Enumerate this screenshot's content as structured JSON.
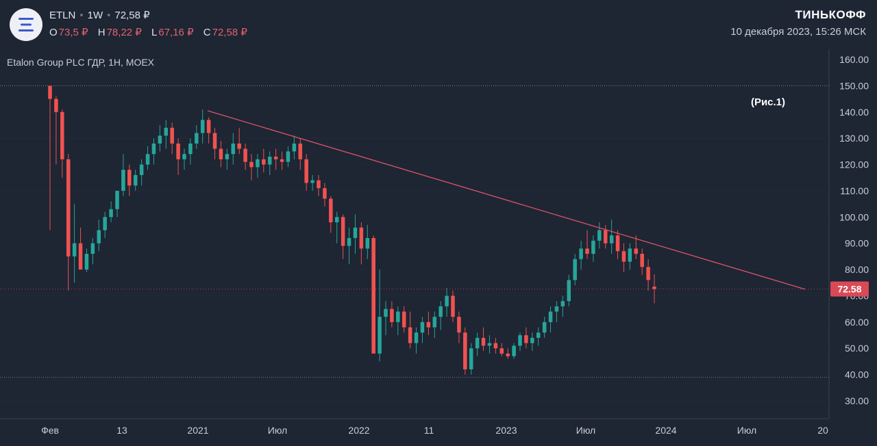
{
  "header": {
    "ticker": "ETLN",
    "interval": "1W",
    "last_price": "72,58 ₽",
    "ohlc": [
      {
        "key": "O",
        "value": "73,5 ₽"
      },
      {
        "key": "H",
        "value": "78,22 ₽"
      },
      {
        "key": "L",
        "value": "67,16 ₽"
      },
      {
        "key": "C",
        "value": "72,58 ₽"
      }
    ],
    "brand": "ТИНЬКОФФ",
    "datetime": "10 декабря 2023, 15:26 МСК",
    "logo_icon": "tinkoff-investments-logo-icon"
  },
  "chart_data": {
    "type": "candlestick",
    "title": "Etalon Group PLC ГДР, 1Н, MOEX",
    "annotation": "(Рис.1)",
    "y_ticks": [
      "160.00",
      "150.00",
      "140.00",
      "130.00",
      "120.00",
      "110.00",
      "100.00",
      "90.00",
      "80.00",
      "70.00",
      "60.00",
      "50.00",
      "40.00",
      "30.00"
    ],
    "ylim": [
      30,
      160
    ],
    "x_ticks": [
      "Фев",
      "13",
      "2021",
      "Июл",
      "2022",
      "11",
      "2023",
      "Июл",
      "2024",
      "Июл",
      "20"
    ],
    "last_price_label": "72.58",
    "horizontal_levels": [
      150,
      39
    ],
    "trendline": {
      "from": [
        140.5,
        "2021-01"
      ],
      "to": [
        72.5,
        "2024-11"
      ]
    },
    "colors": {
      "background": "#1e2533",
      "up": "#26a69a",
      "down": "#ef5350",
      "trendline": "#e0546a",
      "price_label": "#d94a56",
      "grid": "#283040"
    },
    "ohlc_weekly": [
      [
        150,
        150,
        95,
        145
      ],
      [
        145,
        146,
        120,
        140
      ],
      [
        140,
        141,
        115,
        122
      ],
      [
        122,
        124,
        72,
        85
      ],
      [
        85,
        105,
        75,
        90
      ],
      [
        90,
        96,
        80,
        80
      ],
      [
        80,
        88,
        79,
        86
      ],
      [
        86,
        92,
        82,
        90
      ],
      [
        90,
        99,
        87,
        95
      ],
      [
        95,
        102,
        92,
        100
      ],
      [
        100,
        106,
        98,
        103
      ],
      [
        103,
        110,
        100,
        110
      ],
      [
        110,
        124,
        108,
        118
      ],
      [
        118,
        120,
        108,
        112
      ],
      [
        112,
        118,
        110,
        116
      ],
      [
        116,
        122,
        112,
        120
      ],
      [
        120,
        127,
        118,
        124
      ],
      [
        124,
        130,
        120,
        128
      ],
      [
        128,
        135,
        125,
        131
      ],
      [
        131,
        137,
        126,
        134
      ],
      [
        134,
        136,
        124,
        128
      ],
      [
        128,
        130,
        116,
        122
      ],
      [
        122,
        126,
        118,
        124
      ],
      [
        124,
        130,
        120,
        128
      ],
      [
        128,
        135,
        126,
        132
      ],
      [
        132,
        141,
        128,
        137
      ],
      [
        137,
        138,
        128,
        132
      ],
      [
        132,
        134,
        122,
        126
      ],
      [
        126,
        129,
        119,
        122
      ],
      [
        122,
        126,
        118,
        124
      ],
      [
        124,
        132,
        120,
        128
      ],
      [
        128,
        134,
        124,
        126
      ],
      [
        126,
        128,
        118,
        121
      ],
      [
        121,
        124,
        114,
        119
      ],
      [
        119,
        124,
        115,
        122
      ],
      [
        122,
        126,
        117,
        120
      ],
      [
        120,
        125,
        116,
        123
      ],
      [
        123,
        126,
        118,
        122
      ],
      [
        122,
        125,
        118,
        121
      ],
      [
        121,
        127,
        119,
        125
      ],
      [
        125,
        131,
        122,
        128
      ],
      [
        128,
        130,
        118,
        122
      ],
      [
        122,
        124,
        110,
        113
      ],
      [
        113,
        116,
        110,
        114
      ],
      [
        114,
        116,
        108,
        111
      ],
      [
        111,
        113,
        104,
        107
      ],
      [
        107,
        108,
        94,
        98
      ],
      [
        98,
        102,
        90,
        100
      ],
      [
        100,
        101,
        84,
        89
      ],
      [
        89,
        96,
        82,
        92
      ],
      [
        92,
        101,
        86,
        96
      ],
      [
        96,
        98,
        82,
        88
      ],
      [
        88,
        97,
        84,
        92
      ],
      [
        92,
        93,
        60,
        48
      ],
      [
        48,
        80,
        45,
        62
      ],
      [
        62,
        68,
        55,
        65
      ],
      [
        65,
        68,
        58,
        60
      ],
      [
        60,
        66,
        55,
        64
      ],
      [
        64,
        66,
        56,
        58
      ],
      [
        58,
        64,
        50,
        52
      ],
      [
        52,
        58,
        48,
        56
      ],
      [
        56,
        62,
        52,
        60
      ],
      [
        60,
        64,
        55,
        58
      ],
      [
        58,
        64,
        54,
        62
      ],
      [
        62,
        68,
        57,
        66
      ],
      [
        66,
        73,
        62,
        70
      ],
      [
        70,
        72,
        60,
        62
      ],
      [
        62,
        64,
        52,
        56
      ],
      [
        56,
        58,
        40,
        42
      ],
      [
        42,
        52,
        40,
        50
      ],
      [
        50,
        56,
        47,
        54
      ],
      [
        54,
        58,
        49,
        51
      ],
      [
        51,
        55,
        48,
        52
      ],
      [
        52,
        54,
        48,
        50
      ],
      [
        50,
        52,
        47,
        48
      ],
      [
        48,
        50,
        46,
        47
      ],
      [
        47,
        52,
        46,
        51
      ],
      [
        51,
        56,
        49,
        55
      ],
      [
        55,
        58,
        50,
        52
      ],
      [
        52,
        56,
        49,
        54
      ],
      [
        54,
        58,
        51,
        56
      ],
      [
        56,
        62,
        54,
        60
      ],
      [
        60,
        66,
        56,
        64
      ],
      [
        64,
        68,
        60,
        66
      ],
      [
        66,
        70,
        62,
        68
      ],
      [
        68,
        78,
        66,
        76
      ],
      [
        76,
        86,
        74,
        84
      ],
      [
        84,
        91,
        80,
        88
      ],
      [
        88,
        95,
        84,
        86
      ],
      [
        86,
        93,
        83,
        91
      ],
      [
        91,
        98,
        88,
        95
      ],
      [
        95,
        97,
        88,
        90
      ],
      [
        90,
        99,
        86,
        93
      ],
      [
        93,
        95,
        84,
        87
      ],
      [
        87,
        90,
        79,
        83
      ],
      [
        83,
        90,
        80,
        88
      ],
      [
        88,
        93,
        84,
        86
      ],
      [
        86,
        88,
        78,
        81
      ],
      [
        81,
        84,
        72,
        76
      ],
      [
        73.5,
        78.22,
        67.16,
        72.58
      ]
    ]
  }
}
